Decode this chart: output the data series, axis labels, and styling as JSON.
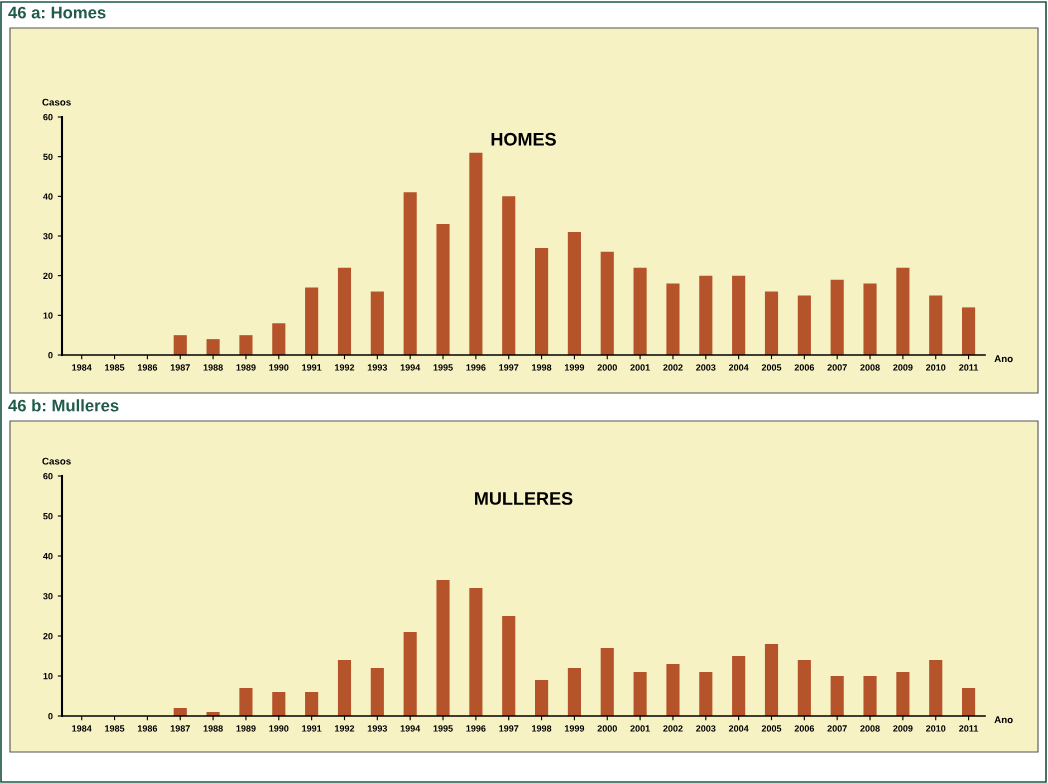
{
  "chart_data": [
    {
      "type": "bar",
      "subtitle": "46 a: Homes",
      "title": "HOMES",
      "ylabel": "Casos",
      "xlabel": "Ano",
      "color": "#b5532a",
      "categories": [
        "1984",
        "1985",
        "1986",
        "1987",
        "1988",
        "1989",
        "1990",
        "1991",
        "1992",
        "1993",
        "1994",
        "1995",
        "1996",
        "1997",
        "1998",
        "1999",
        "2000",
        "2001",
        "2002",
        "2003",
        "2004",
        "2005",
        "2006",
        "2007",
        "2008",
        "2009",
        "2010",
        "2011"
      ],
      "values": [
        0,
        0,
        0,
        5,
        4,
        5,
        8,
        17,
        22,
        16,
        41,
        33,
        51,
        40,
        27,
        31,
        26,
        22,
        18,
        20,
        20,
        16,
        15,
        19,
        18,
        22,
        15,
        12
      ],
      "ylim": [
        0,
        60
      ],
      "yticks": [
        0,
        10,
        20,
        30,
        40,
        50,
        60
      ],
      "grid": false
    },
    {
      "type": "bar",
      "subtitle": "46 b: Mulleres",
      "title": "MULLERES",
      "ylabel": "Casos",
      "xlabel": "Ano",
      "color": "#b5532a",
      "categories": [
        "1984",
        "1985",
        "1986",
        "1987",
        "1988",
        "1989",
        "1990",
        "1991",
        "1992",
        "1993",
        "1994",
        "1995",
        "1996",
        "1997",
        "1998",
        "1999",
        "2000",
        "2001",
        "2002",
        "2003",
        "2004",
        "2005",
        "2006",
        "2007",
        "2008",
        "2009",
        "2010",
        "2011"
      ],
      "values": [
        0,
        0,
        0,
        2,
        1,
        7,
        6,
        6,
        14,
        12,
        21,
        34,
        32,
        25,
        9,
        12,
        17,
        11,
        13,
        11,
        15,
        18,
        14,
        10,
        10,
        11,
        14,
        7
      ],
      "ylim": [
        0,
        60
      ],
      "yticks": [
        0,
        10,
        20,
        30,
        40,
        50,
        60
      ],
      "grid": false
    }
  ]
}
